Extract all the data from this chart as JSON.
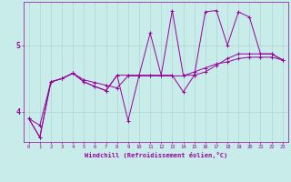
{
  "xlabel": "Windchill (Refroidissement éolien,°C)",
  "bg_color": "#c8ecea",
  "grid_color": "#b0d4d0",
  "line_color": "#990099",
  "ylim": [
    3.55,
    5.65
  ],
  "xlim": [
    -0.5,
    23.5
  ],
  "yticks": [
    4,
    5
  ],
  "xticks": [
    0,
    1,
    2,
    3,
    4,
    5,
    6,
    7,
    8,
    9,
    10,
    11,
    12,
    13,
    14,
    15,
    16,
    17,
    18,
    19,
    20,
    21,
    22,
    23
  ],
  "line1_x": [
    0,
    1,
    2,
    3,
    4,
    5,
    6,
    7,
    8,
    9,
    10,
    11,
    12,
    13,
    14,
    15,
    16,
    17,
    18,
    19,
    20,
    21,
    22,
    23
  ],
  "line1_y": [
    3.9,
    3.8,
    4.45,
    4.5,
    4.58,
    4.48,
    4.44,
    4.4,
    4.36,
    4.54,
    4.54,
    4.54,
    4.54,
    4.54,
    4.54,
    4.6,
    4.66,
    4.72,
    4.75,
    4.8,
    4.82,
    4.82,
    4.82,
    4.78
  ],
  "line2_x": [
    0,
    1,
    2,
    3,
    4,
    5,
    6,
    7,
    8,
    9,
    10,
    11,
    12,
    13,
    14,
    15,
    16,
    17,
    18,
    19,
    20,
    21,
    22,
    23
  ],
  "line2_y": [
    3.9,
    3.62,
    4.45,
    4.5,
    4.58,
    4.45,
    4.38,
    4.32,
    4.55,
    3.87,
    4.55,
    5.18,
    4.55,
    5.52,
    4.55,
    4.55,
    5.5,
    5.52,
    5.0,
    5.5,
    5.42,
    4.87,
    4.87,
    4.78
  ],
  "line3_x": [
    0,
    1,
    2,
    3,
    4,
    5,
    6,
    7,
    8,
    9,
    10,
    11,
    12,
    13,
    14,
    15,
    16,
    17,
    18,
    19,
    20,
    21,
    22,
    23
  ],
  "line3_y": [
    3.9,
    3.62,
    4.45,
    4.5,
    4.58,
    4.45,
    4.38,
    4.32,
    4.55,
    4.55,
    4.55,
    4.55,
    4.55,
    4.55,
    4.3,
    4.55,
    4.6,
    4.7,
    4.8,
    4.87,
    4.87,
    4.87,
    4.87,
    4.78
  ]
}
